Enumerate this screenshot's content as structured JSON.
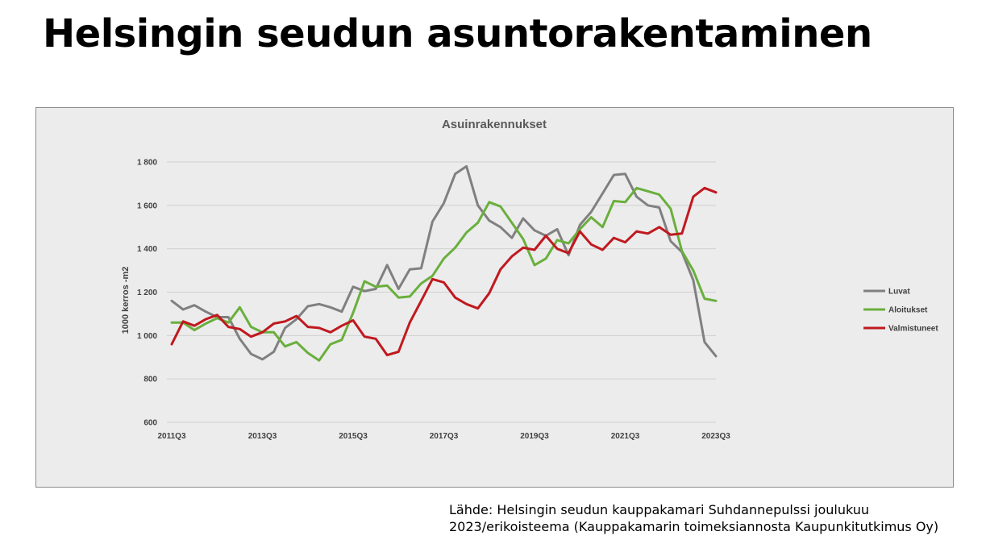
{
  "title": "Helsingin seudun asuntorakentaminen",
  "source": {
    "line1": "Lähde: Helsingin seudun kauppakamari Suhdannepulssi joulukuu",
    "line2": "2023/erikoisteema (Kauppakamarin toimeksiannosta Kaupunkitutkimus Oy)"
  },
  "chart_data": {
    "type": "line",
    "title": "Asuinrakennukset",
    "ylabel": "1000 kerros -m2",
    "xlabel": "",
    "ylim": [
      600,
      1800
    ],
    "yticks": [
      600,
      800,
      1000,
      1200,
      1400,
      1600,
      1800
    ],
    "ytick_labels": [
      "600",
      "800",
      "1 000",
      "1 200",
      "1 400",
      "1 600",
      "1 800"
    ],
    "x": [
      "2011Q3",
      "2011Q4",
      "2012Q1",
      "2012Q2",
      "2012Q3",
      "2012Q4",
      "2013Q1",
      "2013Q2",
      "2013Q3",
      "2013Q4",
      "2014Q1",
      "2014Q2",
      "2014Q3",
      "2014Q4",
      "2015Q1",
      "2015Q2",
      "2015Q3",
      "2015Q4",
      "2016Q1",
      "2016Q2",
      "2016Q3",
      "2016Q4",
      "2017Q1",
      "2017Q2",
      "2017Q3",
      "2017Q4",
      "2018Q1",
      "2018Q2",
      "2018Q3",
      "2018Q4",
      "2019Q1",
      "2019Q2",
      "2019Q3",
      "2019Q4",
      "2020Q1",
      "2020Q2",
      "2020Q3",
      "2020Q4",
      "2021Q1",
      "2021Q2",
      "2021Q3",
      "2021Q4",
      "2022Q1",
      "2022Q2",
      "2022Q3",
      "2022Q4",
      "2023Q1",
      "2023Q2",
      "2023Q3"
    ],
    "xtick_labels": [
      "2011Q3",
      "2013Q3",
      "2015Q3",
      "2017Q3",
      "2019Q3",
      "2021Q3",
      "2023Q3"
    ],
    "legend_position": "right",
    "grid": true,
    "series": [
      {
        "name": "Luvat",
        "color": "#808080",
        "values": [
          1160,
          1120,
          1140,
          1110,
          1085,
          1085,
          985,
          915,
          890,
          925,
          1035,
          1075,
          1135,
          1145,
          1130,
          1110,
          1225,
          1205,
          1215,
          1325,
          1215,
          1305,
          1310,
          1525,
          1610,
          1745,
          1780,
          1600,
          1530,
          1500,
          1450,
          1540,
          1485,
          1460,
          1490,
          1370,
          1510,
          1570,
          1655,
          1740,
          1745,
          1640,
          1600,
          1590,
          1435,
          1385,
          1255,
          970,
          905
        ]
      },
      {
        "name": "Aloitukset",
        "color": "#6aaf3d",
        "values": [
          1060,
          1060,
          1025,
          1055,
          1080,
          1060,
          1130,
          1040,
          1015,
          1015,
          950,
          970,
          920,
          885,
          960,
          980,
          1105,
          1250,
          1225,
          1230,
          1175,
          1180,
          1240,
          1275,
          1355,
          1405,
          1475,
          1520,
          1615,
          1595,
          1520,
          1445,
          1325,
          1355,
          1440,
          1425,
          1490,
          1545,
          1500,
          1620,
          1615,
          1680,
          1665,
          1650,
          1585,
          1390,
          1300,
          1170,
          1160
        ]
      },
      {
        "name": "Valmistuneet",
        "color": "#c0191f",
        "values": [
          960,
          1065,
          1045,
          1075,
          1095,
          1040,
          1030,
          995,
          1015,
          1055,
          1065,
          1090,
          1040,
          1035,
          1015,
          1045,
          1070,
          995,
          985,
          910,
          925,
          1060,
          1160,
          1260,
          1245,
          1175,
          1145,
          1125,
          1195,
          1305,
          1365,
          1405,
          1395,
          1460,
          1400,
          1380,
          1480,
          1420,
          1395,
          1450,
          1430,
          1480,
          1470,
          1500,
          1465,
          1470,
          1640,
          1680,
          1660
        ]
      }
    ]
  }
}
